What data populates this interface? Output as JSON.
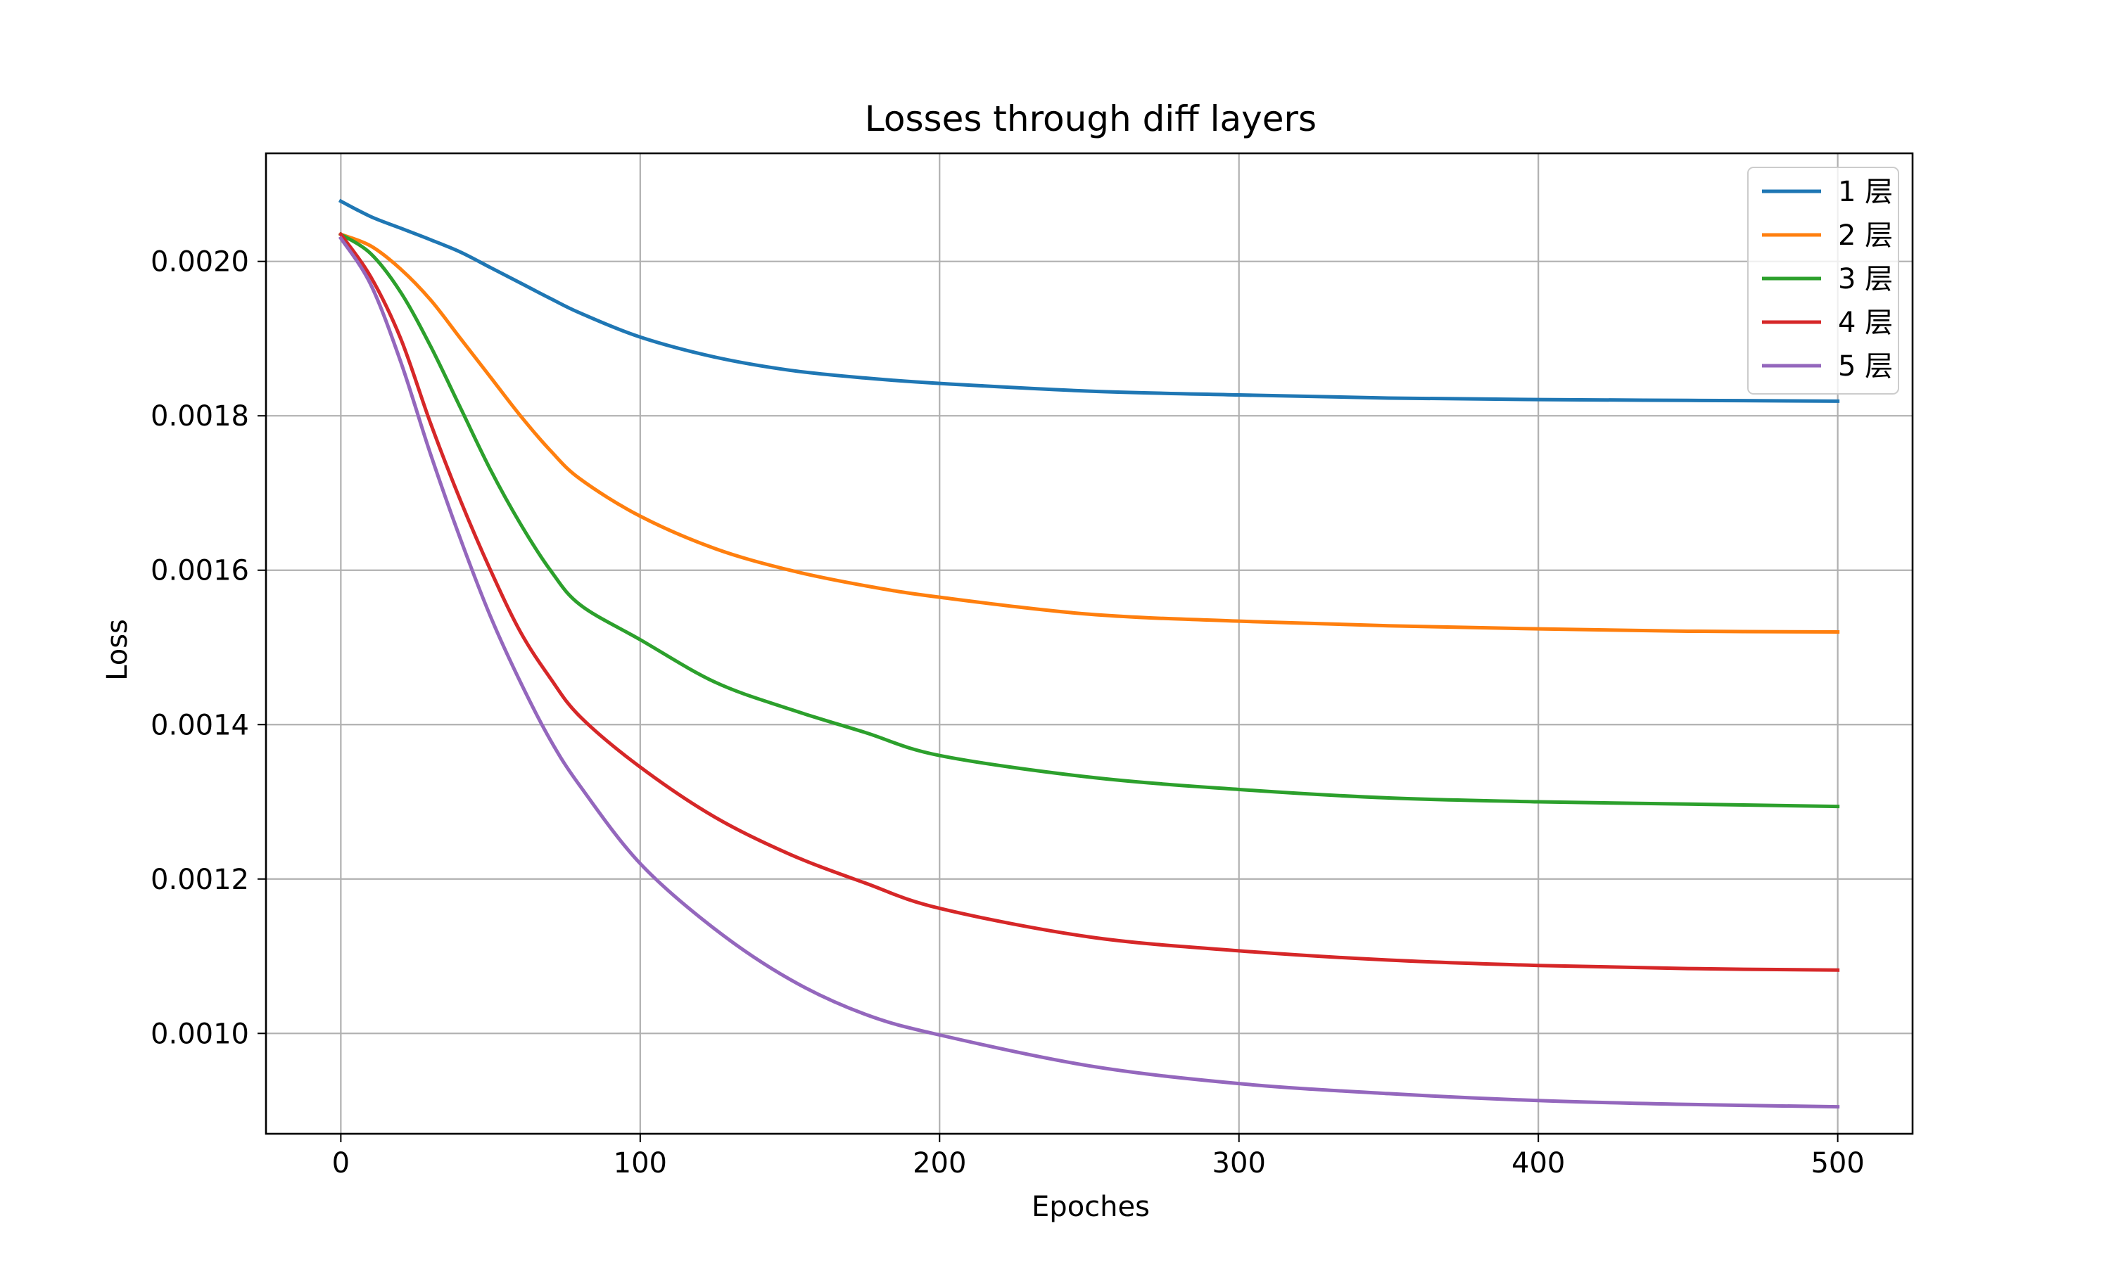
{
  "chart_data": {
    "type": "line",
    "title": "Losses through diff layers",
    "xlabel": "Epoches",
    "ylabel": "Loss",
    "xlim": [
      -25,
      525
    ],
    "ylim": [
      0.00087,
      0.00214
    ],
    "xticks": [
      0,
      100,
      200,
      300,
      400,
      500
    ],
    "xtick_labels": [
      "0",
      "100",
      "200",
      "300",
      "400",
      "500"
    ],
    "yticks": [
      0.001,
      0.0012,
      0.0014,
      0.0016,
      0.0018,
      0.002
    ],
    "ytick_labels": [
      "0.0010",
      "0.0012",
      "0.0014",
      "0.0016",
      "0.0018",
      "0.0020"
    ],
    "grid": true,
    "legend_position": "top-right",
    "series": [
      {
        "name": "1 层",
        "color": "#1f77b4",
        "points": [
          [
            0,
            0.002078
          ],
          [
            10,
            0.002058
          ],
          [
            20,
            0.002043
          ],
          [
            30,
            0.002028
          ],
          [
            40,
            0.002012
          ],
          [
            50,
            0.001992
          ],
          [
            60,
            0.001972
          ],
          [
            70,
            0.001952
          ],
          [
            80,
            0.001933
          ],
          [
            100,
            0.001902
          ],
          [
            125,
            0.001876
          ],
          [
            150,
            0.001859
          ],
          [
            175,
            0.001849
          ],
          [
            200,
            0.001842
          ],
          [
            250,
            0.001832
          ],
          [
            300,
            0.001827
          ],
          [
            350,
            0.001823
          ],
          [
            400,
            0.001821
          ],
          [
            450,
            0.00182
          ],
          [
            500,
            0.001819
          ]
        ]
      },
      {
        "name": "2 层",
        "color": "#ff7f0e",
        "points": [
          [
            0,
            0.002035
          ],
          [
            10,
            0.00202
          ],
          [
            20,
            0.00199
          ],
          [
            30,
            0.00195
          ],
          [
            40,
            0.0019
          ],
          [
            50,
            0.00185
          ],
          [
            60,
            0.0018
          ],
          [
            70,
            0.001755
          ],
          [
            80,
            0.001718
          ],
          [
            100,
            0.00167
          ],
          [
            125,
            0.001628
          ],
          [
            150,
            0.0016
          ],
          [
            175,
            0.00158
          ],
          [
            200,
            0.001565
          ],
          [
            250,
            0.001543
          ],
          [
            300,
            0.001534
          ],
          [
            350,
            0.001528
          ],
          [
            400,
            0.001524
          ],
          [
            450,
            0.001521
          ],
          [
            500,
            0.00152
          ]
        ]
      },
      {
        "name": "3 层",
        "color": "#2ca02c",
        "points": [
          [
            0,
            0.002035
          ],
          [
            10,
            0.00201
          ],
          [
            20,
            0.00196
          ],
          [
            30,
            0.00189
          ],
          [
            40,
            0.00181
          ],
          [
            50,
            0.00173
          ],
          [
            60,
            0.00166
          ],
          [
            70,
            0.0016
          ],
          [
            80,
            0.001555
          ],
          [
            100,
            0.00151
          ],
          [
            125,
            0.001455
          ],
          [
            150,
            0.00142
          ],
          [
            175,
            0.00139
          ],
          [
            200,
            0.00136
          ],
          [
            250,
            0.001332
          ],
          [
            300,
            0.001316
          ],
          [
            350,
            0.001305
          ],
          [
            400,
            0.0013
          ],
          [
            450,
            0.001297
          ],
          [
            500,
            0.001294
          ]
        ]
      },
      {
        "name": "4 层",
        "color": "#d62728",
        "points": [
          [
            0,
            0.002035
          ],
          [
            10,
            0.00198
          ],
          [
            20,
            0.0019
          ],
          [
            30,
            0.00179
          ],
          [
            40,
            0.00169
          ],
          [
            50,
            0.0016
          ],
          [
            60,
            0.00152
          ],
          [
            70,
            0.00146
          ],
          [
            80,
            0.00141
          ],
          [
            100,
            0.001345
          ],
          [
            125,
            0.00128
          ],
          [
            150,
            0.001232
          ],
          [
            175,
            0.001195
          ],
          [
            200,
            0.001162
          ],
          [
            250,
            0.001125
          ],
          [
            300,
            0.001107
          ],
          [
            350,
            0.001095
          ],
          [
            400,
            0.001088
          ],
          [
            450,
            0.001084
          ],
          [
            500,
            0.001082
          ]
        ]
      },
      {
        "name": "5 层",
        "color": "#9467bd",
        "points": [
          [
            0,
            0.00203
          ],
          [
            10,
            0.00197
          ],
          [
            20,
            0.00187
          ],
          [
            30,
            0.00175
          ],
          [
            40,
            0.00164
          ],
          [
            50,
            0.00154
          ],
          [
            60,
            0.001455
          ],
          [
            70,
            0.00138
          ],
          [
            80,
            0.00132
          ],
          [
            100,
            0.00122
          ],
          [
            125,
            0.001135
          ],
          [
            150,
            0.00107
          ],
          [
            175,
            0.001025
          ],
          [
            200,
            0.000998
          ],
          [
            250,
            0.000958
          ],
          [
            300,
            0.000935
          ],
          [
            350,
            0.000922
          ],
          [
            400,
            0.000913
          ],
          [
            450,
            0.000908
          ],
          [
            500,
            0.000905
          ]
        ]
      }
    ]
  }
}
